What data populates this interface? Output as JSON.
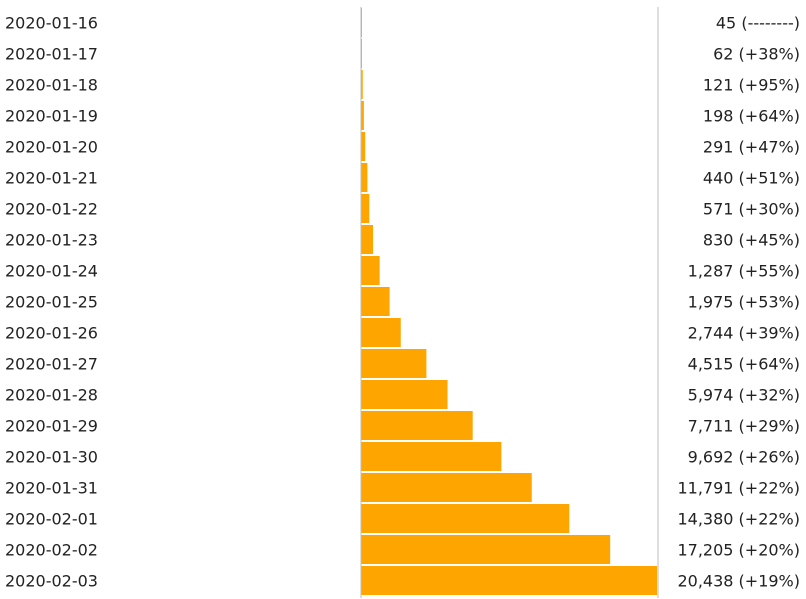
{
  "colors": {
    "bar": "#FFA500",
    "axis": "#bdbdbd",
    "text": "#222222"
  },
  "chart_data": {
    "type": "bar",
    "orientation": "horizontal",
    "title": "",
    "xlabel": "",
    "ylabel": "",
    "grid": false,
    "xlim": [
      0,
      20438
    ],
    "categories": [
      "2020-01-16",
      "2020-01-17",
      "2020-01-18",
      "2020-01-19",
      "2020-01-20",
      "2020-01-21",
      "2020-01-22",
      "2020-01-23",
      "2020-01-24",
      "2020-01-25",
      "2020-01-26",
      "2020-01-27",
      "2020-01-28",
      "2020-01-29",
      "2020-01-30",
      "2020-01-31",
      "2020-02-01",
      "2020-02-02",
      "2020-02-03"
    ],
    "values": [
      45,
      62,
      121,
      198,
      291,
      440,
      571,
      830,
      1287,
      1975,
      2744,
      4515,
      5974,
      7711,
      9692,
      11791,
      14380,
      17205,
      20438
    ],
    "value_labels": [
      "45 (--------)",
      "62 (+38%)",
      "121 (+95%)",
      "198 (+64%)",
      "291 (+47%)",
      "440 (+51%)",
      "571 (+30%)",
      "830 (+45%)",
      "1,287 (+55%)",
      "1,975 (+53%)",
      "2,744 (+39%)",
      "4,515 (+64%)",
      "5,974 (+32%)",
      "7,711 (+29%)",
      "9,692 (+26%)",
      "11,791 (+22%)",
      "14,380 (+22%)",
      "17,205 (+20%)",
      "20,438 (+19%)"
    ]
  }
}
